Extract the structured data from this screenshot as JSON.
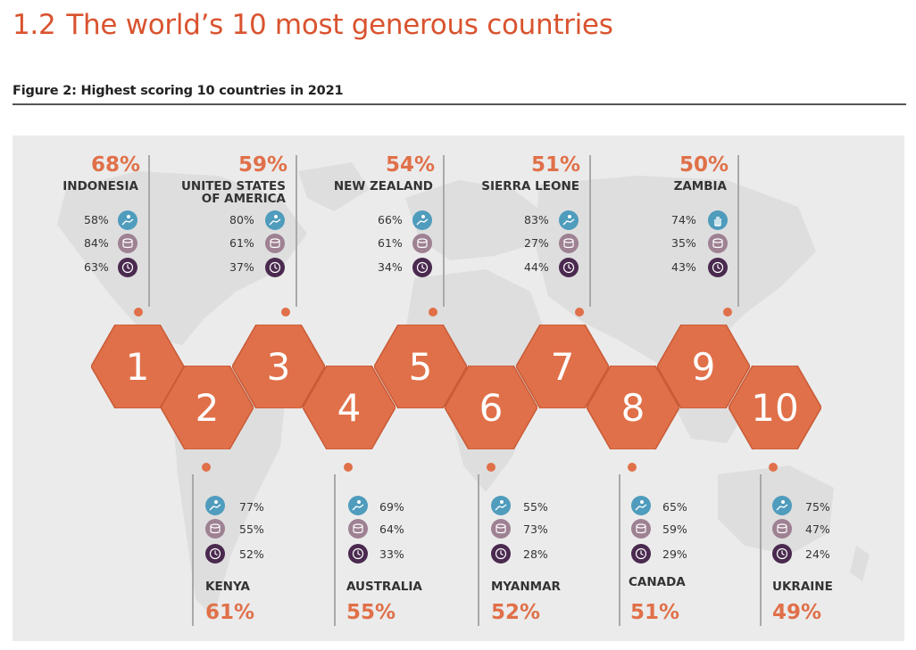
{
  "section": {
    "number": "1.2",
    "title": "The world’s 10 most generous countries"
  },
  "figure": {
    "caption": "Figure 2: Highest scoring 10 countries in 2021"
  },
  "colors": {
    "accent": "#e07049",
    "heading": "#d9532f",
    "help_icon": "#4f9cbd",
    "money_icon": "#9e8193",
    "time_icon": "#4a2a4f"
  },
  "legend_icons": [
    "helped-stranger-icon",
    "donated-money-icon",
    "volunteered-time-icon"
  ],
  "countries": [
    {
      "rank": "1",
      "name": "INDONESIA",
      "score": "68%",
      "helped": "58%",
      "donated": "84%",
      "volunteered": "63%"
    },
    {
      "rank": "2",
      "name": "KENYA",
      "score": "61%",
      "helped": "77%",
      "donated": "55%",
      "volunteered": "52%"
    },
    {
      "rank": "3",
      "name": "UNITED STATES OF AMERICA",
      "name_line1": "UNITED STATES",
      "name_line2": "OF AMERICA",
      "score": "59%",
      "helped": "80%",
      "donated": "61%",
      "volunteered": "37%"
    },
    {
      "rank": "4",
      "name": "AUSTRALIA",
      "score": "55%",
      "helped": "69%",
      "donated": "64%",
      "volunteered": "33%"
    },
    {
      "rank": "5",
      "name": "NEW ZEALAND",
      "score": "54%",
      "helped": "66%",
      "donated": "61%",
      "volunteered": "34%"
    },
    {
      "rank": "6",
      "name": "MYANMAR",
      "score": "52%",
      "helped": "55%",
      "donated": "73%",
      "volunteered": "28%"
    },
    {
      "rank": "7",
      "name": "SIERRA LEONE",
      "score": "51%",
      "helped": "83%",
      "donated": "27%",
      "volunteered": "44%"
    },
    {
      "rank": "8",
      "name": "CANADA",
      "score": "51%",
      "helped": "65%",
      "donated": "59%",
      "volunteered": "29%"
    },
    {
      "rank": "9",
      "name": "ZAMBIA",
      "score": "50%",
      "helped": "74%",
      "donated": "35%",
      "volunteered": "43%"
    },
    {
      "rank": "10",
      "name": "UKRAINE",
      "score": "49%",
      "helped": "75%",
      "donated": "47%",
      "volunteered": "24%"
    }
  ]
}
